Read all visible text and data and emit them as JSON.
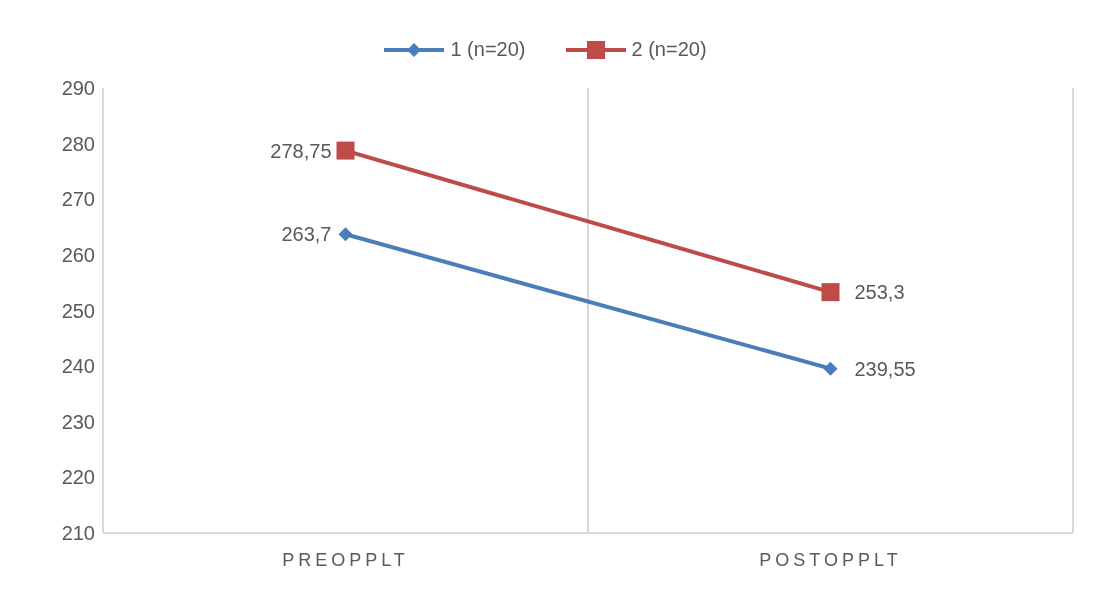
{
  "chart_data": {
    "type": "line",
    "categories": [
      "PREOPPLT",
      "POSTOPPLT"
    ],
    "series": [
      {
        "name": "1 (n=20)",
        "color": "#4a7ebb",
        "values": [
          263.7,
          239.55
        ],
        "marker": "diamond",
        "value_labels": [
          "263,7",
          "239,55"
        ]
      },
      {
        "name": "2 (n=20)",
        "color": "#be4b48",
        "values": [
          278.75,
          253.3
        ],
        "marker": "square",
        "value_labels": [
          "278,75",
          "253,3"
        ]
      }
    ],
    "ylim": [
      210,
      290
    ],
    "yticks": [
      210,
      220,
      230,
      240,
      250,
      260,
      270,
      280,
      290
    ],
    "grid": "x",
    "legend": "top",
    "line_style": "solid"
  }
}
